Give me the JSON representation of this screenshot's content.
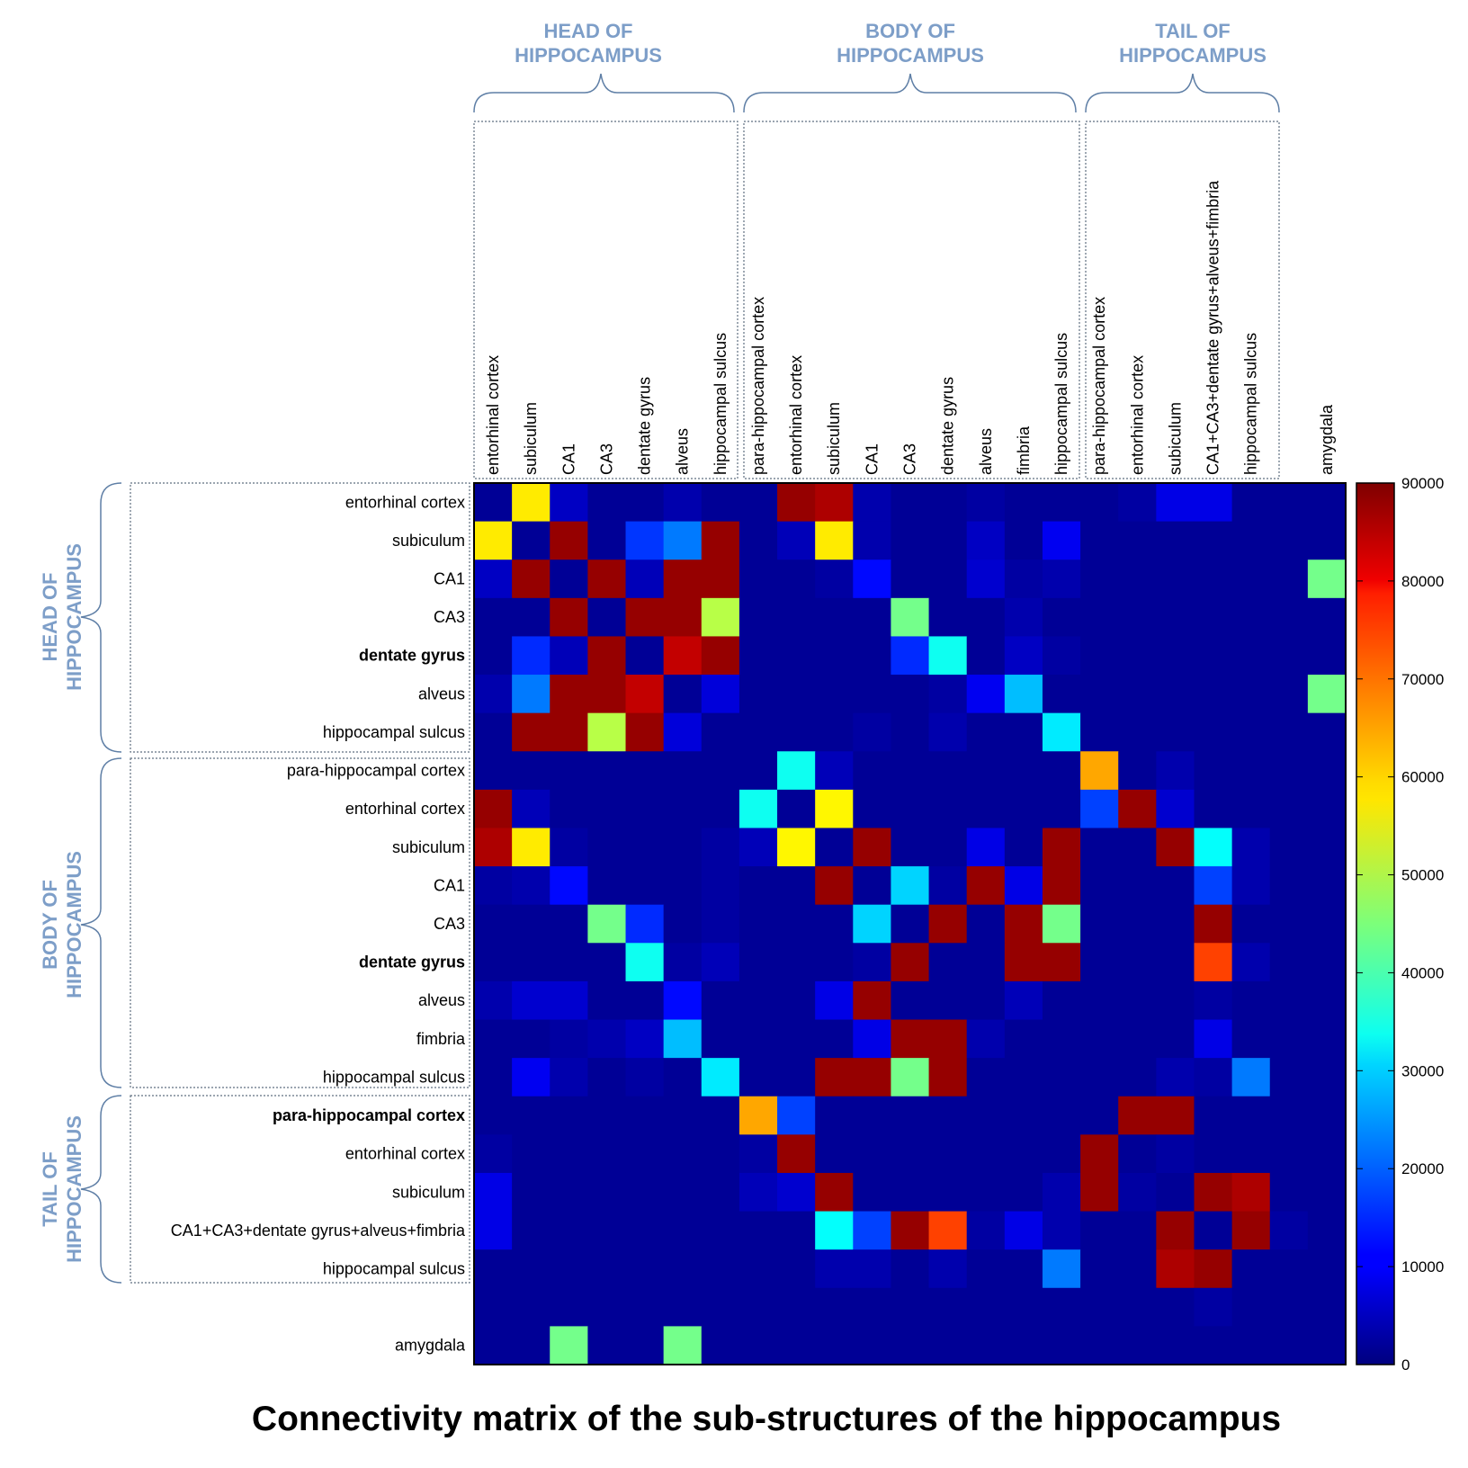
{
  "chart_data": {
    "type": "heatmap",
    "title": "Connectivity matrix of the sub-structures of the hippocampus",
    "labels": [
      "entorhinal cortex",
      "subiculum",
      "CA1",
      "CA3",
      "dentate gyrus",
      "alveus",
      "hippocampal sulcus",
      "para-hippocampal cortex",
      "entorhinal cortex",
      "subiculum",
      "CA1",
      "CA3",
      "dentate gyrus",
      "alveus",
      "fimbria",
      "hippocampal sulcus",
      "para-hippocampal cortex",
      "entorhinal cortex",
      "subiculum",
      "CA1+CA3+dentate gyrus+alveus+fimbria",
      "hippocampal sulcus",
      "",
      "amygdala"
    ],
    "bold_row_labels": [
      4,
      12,
      16
    ],
    "groups": [
      {
        "label": [
          "HEAD OF",
          "HIPPOCAMPUS"
        ]
      },
      {
        "label": [
          "BODY OF",
          "HIPPOCAMPUS"
        ]
      },
      {
        "label": [
          "TAIL OF",
          "HIPPOCAMPUS"
        ]
      }
    ],
    "colorbar": {
      "min": 0,
      "max": 90000,
      "ticks": [
        0,
        10000,
        20000,
        30000,
        40000,
        50000,
        60000,
        70000,
        80000,
        90000
      ]
    },
    "values": [
      [
        2000,
        58000,
        6000,
        2000,
        2000,
        4000,
        2000,
        2000,
        88000,
        86000,
        4000,
        2000,
        2000,
        3000,
        2000,
        2000,
        2000,
        3000,
        9000,
        9000,
        2000,
        2000,
        2000
      ],
      [
        58000,
        2000,
        88000,
        2000,
        16000,
        22000,
        88000,
        2000,
        5000,
        58000,
        4000,
        2000,
        2000,
        6000,
        2000,
        10000,
        2000,
        2000,
        2000,
        2000,
        2000,
        2000,
        2000
      ],
      [
        6000,
        88000,
        2000,
        88000,
        5000,
        88000,
        88000,
        2000,
        2000,
        3000,
        12000,
        2000,
        2000,
        7000,
        3000,
        4000,
        2000,
        2000,
        2000,
        2000,
        2000,
        2000,
        44000
      ],
      [
        2000,
        2000,
        88000,
        2000,
        88000,
        88000,
        50000,
        2000,
        2000,
        2000,
        2000,
        44000,
        2000,
        2000,
        4000,
        2000,
        2000,
        2000,
        2000,
        2000,
        2000,
        2000,
        2000
      ],
      [
        2000,
        15000,
        5000,
        88000,
        2000,
        84000,
        88000,
        2000,
        2000,
        2000,
        2000,
        15000,
        35000,
        2000,
        6000,
        3000,
        2000,
        2000,
        2000,
        2000,
        2000,
        2000,
        2000
      ],
      [
        4000,
        22000,
        88000,
        88000,
        84000,
        2000,
        8000,
        2000,
        2000,
        2000,
        2000,
        2000,
        3000,
        10000,
        28000,
        2000,
        2000,
        2000,
        2000,
        2000,
        2000,
        2000,
        44000
      ],
      [
        2000,
        88000,
        88000,
        50000,
        88000,
        8000,
        2000,
        2000,
        2000,
        2000,
        3000,
        2000,
        4000,
        2000,
        2000,
        32000,
        2000,
        2000,
        2000,
        2000,
        2000,
        2000,
        2000
      ],
      [
        2000,
        2000,
        2000,
        2000,
        2000,
        2000,
        2000,
        2000,
        35000,
        5000,
        2000,
        2000,
        2000,
        2000,
        2000,
        2000,
        64000,
        2000,
        4000,
        2000,
        2000,
        2000,
        2000
      ],
      [
        88000,
        5000,
        2000,
        2000,
        2000,
        2000,
        2000,
        35000,
        2000,
        57000,
        2000,
        2000,
        2000,
        2000,
        2000,
        2000,
        17000,
        88000,
        7000,
        2000,
        2000,
        2000,
        2000
      ],
      [
        86000,
        58000,
        3000,
        2000,
        2000,
        2000,
        3000,
        5000,
        57000,
        2000,
        88000,
        2000,
        2000,
        9000,
        2000,
        88000,
        2000,
        2000,
        88000,
        34000,
        4000,
        2000,
        2000
      ],
      [
        3000,
        4000,
        12000,
        2000,
        2000,
        2000,
        3000,
        2000,
        2000,
        88000,
        2000,
        30000,
        3000,
        88000,
        9000,
        88000,
        2000,
        2000,
        2000,
        17000,
        4000,
        2000,
        2000
      ],
      [
        2000,
        2000,
        2000,
        44000,
        15000,
        2000,
        3000,
        2000,
        2000,
        2000,
        30000,
        2000,
        88000,
        2000,
        88000,
        44000,
        2000,
        2000,
        2000,
        88000,
        2000,
        2000,
        2000
      ],
      [
        2000,
        2000,
        2000,
        2000,
        35000,
        3000,
        5000,
        2000,
        2000,
        2000,
        3000,
        88000,
        2000,
        2000,
        88000,
        88000,
        2000,
        2000,
        2000,
        73000,
        4000,
        2000,
        2000
      ],
      [
        4000,
        7000,
        7000,
        2000,
        2000,
        12000,
        2000,
        2000,
        2000,
        9000,
        88000,
        2000,
        2000,
        2000,
        5000,
        2000,
        2000,
        2000,
        2000,
        3000,
        2000,
        2000,
        2000
      ],
      [
        2000,
        2000,
        3000,
        4000,
        6000,
        28000,
        2000,
        2000,
        2000,
        2000,
        9000,
        88000,
        88000,
        4000,
        2000,
        2000,
        2000,
        2000,
        2000,
        9000,
        2000,
        2000,
        2000
      ],
      [
        2000,
        10000,
        4000,
        2000,
        3000,
        2000,
        32000,
        2000,
        2000,
        88000,
        88000,
        44000,
        88000,
        2000,
        2000,
        2000,
        2000,
        2000,
        4000,
        3000,
        22000,
        2000,
        2000
      ],
      [
        2000,
        2000,
        2000,
        2000,
        2000,
        2000,
        2000,
        64000,
        17000,
        2000,
        2000,
        2000,
        2000,
        2000,
        2000,
        2000,
        2000,
        88000,
        88000,
        2000,
        2000,
        2000,
        2000
      ],
      [
        3000,
        2000,
        2000,
        2000,
        2000,
        2000,
        2000,
        3000,
        88000,
        2000,
        2000,
        2000,
        2000,
        2000,
        2000,
        2000,
        88000,
        2000,
        3000,
        2000,
        2000,
        2000,
        2000
      ],
      [
        9000,
        2000,
        2000,
        2000,
        2000,
        2000,
        2000,
        5000,
        7000,
        88000,
        2000,
        2000,
        2000,
        2000,
        2000,
        4000,
        88000,
        3000,
        2000,
        88000,
        86000,
        2000,
        2000
      ],
      [
        9000,
        2000,
        2000,
        2000,
        2000,
        2000,
        2000,
        2000,
        2000,
        34000,
        17000,
        88000,
        73000,
        3000,
        9000,
        4000,
        2000,
        2000,
        88000,
        2000,
        88000,
        3000,
        2000
      ],
      [
        2000,
        2000,
        2000,
        2000,
        2000,
        2000,
        2000,
        2000,
        2000,
        4000,
        4000,
        2000,
        4000,
        2000,
        2000,
        22000,
        2000,
        2000,
        86000,
        88000,
        2000,
        2000,
        2000
      ],
      [
        2000,
        2000,
        2000,
        2000,
        2000,
        2000,
        2000,
        2000,
        2000,
        2000,
        2000,
        2000,
        2000,
        2000,
        2000,
        2000,
        2000,
        2000,
        2000,
        3000,
        2000,
        2000,
        2000
      ],
      [
        2000,
        2000,
        44000,
        2000,
        2000,
        44000,
        2000,
        2000,
        2000,
        2000,
        2000,
        2000,
        2000,
        2000,
        2000,
        2000,
        2000,
        2000,
        2000,
        2000,
        2000,
        2000,
        2000
      ]
    ]
  }
}
